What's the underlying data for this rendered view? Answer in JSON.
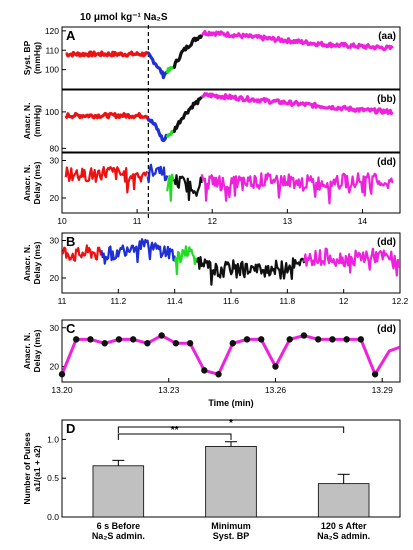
{
  "figure": {
    "injection_label": "10 μmol kg⁻¹ Na₂S",
    "injection_time": 11.15,
    "colors": {
      "red": "#ee1111",
      "blue": "#1f2fd6",
      "green": "#22dd22",
      "black": "#111111",
      "magenta": "#ee22dd",
      "bar": "#c0c0c0",
      "axis": "#000000"
    }
  },
  "chart_data": [
    {
      "panel": "A",
      "tag": "(aa)",
      "type": "line",
      "ylabel": [
        "Syst. BP",
        "(mmHg)"
      ],
      "xlim": [
        10,
        14.5
      ],
      "ylim": [
        90,
        122
      ],
      "yticks": [
        100,
        110,
        120
      ],
      "segments": [
        {
          "color": "red",
          "x": [
            10.05,
            10.5,
            11.0,
            11.14
          ],
          "y": [
            108,
            108,
            108,
            108
          ]
        },
        {
          "color": "blue",
          "x": [
            11.14,
            11.25,
            11.35,
            11.4
          ],
          "y": [
            108,
            103,
            97,
            99
          ]
        },
        {
          "color": "green",
          "x": [
            11.4,
            11.48
          ],
          "y": [
            99,
            101
          ]
        },
        {
          "color": "black",
          "x": [
            11.48,
            11.6,
            11.75,
            11.86
          ],
          "y": [
            101,
            109,
            115,
            118
          ]
        },
        {
          "color": "magenta",
          "x": [
            11.86,
            12.0,
            12.5,
            13.0,
            13.5,
            14.0,
            14.4
          ],
          "y": [
            119,
            119,
            117,
            115,
            113,
            112,
            111
          ]
        }
      ]
    },
    {
      "panel": "",
      "tag": "(bb)",
      "type": "line",
      "ylabel": [
        "Anacr. N.",
        "(mmHg)"
      ],
      "xlim": [
        10,
        14.5
      ],
      "ylim": [
        78,
        112
      ],
      "yticks": [
        80,
        100
      ],
      "segments": [
        {
          "color": "red",
          "x": [
            10.05,
            10.5,
            11.0,
            11.14
          ],
          "y": [
            98,
            98,
            98,
            98
          ]
        },
        {
          "color": "blue",
          "x": [
            11.14,
            11.25,
            11.35,
            11.4
          ],
          "y": [
            97,
            92,
            84,
            87
          ]
        },
        {
          "color": "green",
          "x": [
            11.4,
            11.48
          ],
          "y": [
            87,
            89
          ]
        },
        {
          "color": "black",
          "x": [
            11.48,
            11.6,
            11.75,
            11.86
          ],
          "y": [
            89,
            97,
            104,
            107
          ]
        },
        {
          "color": "magenta",
          "x": [
            11.86,
            12.0,
            12.5,
            13.0,
            13.5,
            14.0,
            14.4
          ],
          "y": [
            109,
            109,
            107,
            105,
            103,
            101,
            100
          ]
        }
      ]
    },
    {
      "panel": "",
      "tag": "(dd)",
      "type": "line",
      "ylabel": [
        "Anacr. N.",
        "Delay (ms)"
      ],
      "xlim": [
        10,
        14.5
      ],
      "ylim": [
        16,
        32
      ],
      "yticks": [
        20,
        30
      ],
      "xticks": [
        10,
        11,
        12,
        13,
        14
      ],
      "segments": [
        {
          "color": "red",
          "x": [
            10.05,
            10.3,
            10.6,
            10.9,
            11.14
          ],
          "y": [
            27,
            26,
            27,
            26,
            27
          ]
        },
        {
          "color": "blue",
          "x": [
            11.14,
            11.3,
            11.4
          ],
          "y": [
            27,
            28,
            26
          ]
        },
        {
          "color": "green",
          "x": [
            11.4,
            11.48
          ],
          "y": [
            24,
            25
          ]
        },
        {
          "color": "black",
          "x": [
            11.48,
            11.6,
            11.75,
            11.86
          ],
          "y": [
            25,
            24,
            23,
            24
          ]
        },
        {
          "color": "magenta",
          "x": [
            11.86,
            12.2,
            12.8,
            13.4,
            14.0,
            14.4
          ],
          "y": [
            25,
            24,
            25,
            24,
            25,
            24
          ]
        }
      ]
    },
    {
      "panel": "B",
      "tag": "(dd)",
      "type": "line",
      "ylabel": [
        "Anacr. N.",
        "Delay (ms)"
      ],
      "xlim": [
        11.0,
        12.2
      ],
      "ylim": [
        16,
        32
      ],
      "yticks": [
        20,
        30
      ],
      "xticks": [
        11.0,
        11.2,
        11.4,
        11.6,
        11.8,
        12.0,
        12.2
      ],
      "segments": [
        {
          "color": "red",
          "x": [
            11.0,
            11.05,
            11.1,
            11.14
          ],
          "y": [
            27,
            26,
            27,
            26
          ]
        },
        {
          "color": "blue",
          "x": [
            11.14,
            11.2,
            11.26,
            11.32,
            11.38,
            11.4
          ],
          "y": [
            26,
            27,
            29,
            28,
            27,
            26
          ]
        },
        {
          "color": "green",
          "x": [
            11.4,
            11.44,
            11.48
          ],
          "y": [
            24,
            28,
            25
          ]
        },
        {
          "color": "black",
          "x": [
            11.48,
            11.55,
            11.62,
            11.7,
            11.78,
            11.86
          ],
          "y": [
            24,
            22,
            23,
            22,
            23,
            24
          ]
        },
        {
          "color": "magenta",
          "x": [
            11.86,
            11.94,
            12.0,
            12.1,
            12.2
          ],
          "y": [
            25,
            26,
            25,
            26,
            25
          ]
        }
      ]
    },
    {
      "panel": "C",
      "tag": "(dd)",
      "type": "line",
      "ylabel": [
        "Anacr. N.",
        "Delay (ms)"
      ],
      "xlabel": "Time (min)",
      "xlim": [
        13.2,
        13.295
      ],
      "ylim": [
        16,
        32
      ],
      "yticks": [
        20,
        30
      ],
      "xticks": [
        13.2,
        13.23,
        13.26,
        13.29
      ],
      "xtick_labels": [
        "13.20",
        "13.23",
        "13.26",
        "13.29"
      ],
      "segments": [
        {
          "color": "magenta",
          "x": [
            13.2,
            13.204,
            13.208,
            13.212,
            13.216,
            13.22,
            13.224,
            13.228,
            13.232,
            13.236,
            13.24,
            13.244,
            13.248,
            13.252,
            13.256,
            13.26,
            13.264,
            13.268,
            13.272,
            13.276,
            13.28,
            13.284,
            13.288,
            13.292,
            13.295
          ],
          "y": [
            18,
            27,
            27,
            26,
            27,
            27,
            26,
            28,
            26,
            26,
            19,
            18,
            26,
            27,
            27,
            20,
            27,
            28,
            27,
            27,
            27,
            27,
            18,
            24,
            25
          ]
        }
      ],
      "points": {
        "x": [
          13.2,
          13.204,
          13.208,
          13.212,
          13.216,
          13.22,
          13.224,
          13.228,
          13.232,
          13.236,
          13.24,
          13.244,
          13.248,
          13.252,
          13.256,
          13.26,
          13.264,
          13.268,
          13.272,
          13.276,
          13.28,
          13.284,
          13.288
        ],
        "y": [
          18,
          27,
          27,
          26,
          27,
          27,
          26,
          28,
          26,
          26,
          19,
          18,
          26,
          27,
          27,
          20,
          27,
          28,
          27,
          27,
          27,
          27,
          18
        ]
      }
    },
    {
      "panel": "D",
      "type": "bar",
      "ylabel": [
        "Number of Pulses",
        "a1/(a1 + a2)"
      ],
      "ylim": [
        0,
        1.25
      ],
      "yticks": [
        0.0,
        0.5,
        1.0
      ],
      "ytick_labels": [
        "0.0",
        "0.5",
        "1.0"
      ],
      "categories": [
        [
          "6 s Before",
          "Na₂S admin."
        ],
        [
          "Minimum",
          "Syst. BP"
        ],
        [
          "120 s After",
          "Na₂S admin."
        ]
      ],
      "values": [
        0.66,
        0.91,
        0.43
      ],
      "errors": [
        0.07,
        0.06,
        0.12
      ],
      "significance": [
        {
          "from": 0,
          "to": 1,
          "label": "**"
        },
        {
          "from": 0,
          "to": 2,
          "label": "*"
        }
      ]
    }
  ]
}
